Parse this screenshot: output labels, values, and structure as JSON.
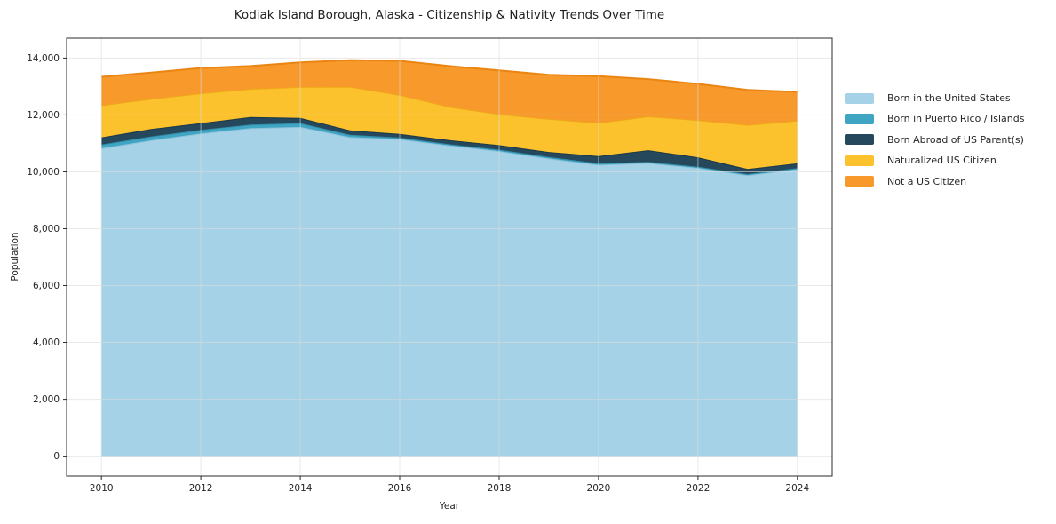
{
  "title": "Kodiak Island Borough, Alaska - Citizenship & Nativity Trends Over Time",
  "chart_data": {
    "type": "area",
    "stacked": true,
    "title": "Kodiak Island Borough, Alaska - Citizenship & Nativity Trends Over Time",
    "xlabel": "Year",
    "ylabel": "Population",
    "x": [
      2010,
      2011,
      2012,
      2013,
      2014,
      2015,
      2016,
      2017,
      2018,
      2019,
      2020,
      2021,
      2022,
      2023,
      2024
    ],
    "series": [
      {
        "name": "Born in the United States",
        "color": "#a6d2e8",
        "edge_color": "#8cc3dc",
        "values": [
          10830,
          11110,
          11350,
          11540,
          11580,
          11220,
          11150,
          10930,
          10730,
          10470,
          10250,
          10310,
          10140,
          9880,
          10090
        ]
      },
      {
        "name": "Born in Puerto Rico / Islands",
        "color": "#3fa5c2",
        "edge_color": "#338fab",
        "values": [
          130,
          135,
          125,
          125,
          135,
          85,
          55,
          40,
          50,
          55,
          45,
          40,
          40,
          40,
          40
        ]
      },
      {
        "name": "Born Abroad of US Parent(s)",
        "color": "#25485c",
        "edge_color": "#1b3949",
        "values": [
          250,
          260,
          240,
          260,
          180,
          155,
          130,
          145,
          160,
          175,
          260,
          410,
          330,
          180,
          170
        ]
      },
      {
        "name": "Naturalized US Citizen",
        "color": "#fcc22e",
        "edge_color": "#efa81a",
        "values": [
          1130,
          1065,
          1045,
          990,
          1090,
          1530,
          1370,
          1175,
          1090,
          1160,
          1170,
          1190,
          1310,
          1550,
          1500
        ]
      },
      {
        "name": "Not a US Citizen",
        "color": "#f7992b",
        "edge_color": "#eb8511",
        "values": [
          1000,
          920,
          890,
          805,
          865,
          940,
          1200,
          1430,
          1540,
          1550,
          1640,
          1310,
          1270,
          1230,
          1010
        ]
      }
    ],
    "stack_totals": [
      13340,
      13490,
      13650,
      13720,
      13850,
      13930,
      13905,
      13720,
      13570,
      13410,
      13365,
      13260,
      13090,
      12880,
      12810
    ],
    "x_ticks": [
      2010,
      2012,
      2014,
      2016,
      2018,
      2020,
      2022,
      2024
    ],
    "x_tick_labels": [
      "2010",
      "2012",
      "2014",
      "2016",
      "2018",
      "2020",
      "2022",
      "2024"
    ],
    "y_ticks": [
      0,
      2000,
      4000,
      6000,
      8000,
      10000,
      12000,
      14000
    ],
    "y_tick_labels": [
      "0",
      "2,000",
      "4,000",
      "6,000",
      "8,000",
      "10,000",
      "12,000",
      "14,000"
    ],
    "xlim": [
      2009.3,
      2024.7
    ],
    "ylim": [
      -700,
      14700
    ],
    "grid": true,
    "grid_color": "#dcdcdc",
    "spine_color": "#2b2b2b",
    "legend_position": "right"
  }
}
